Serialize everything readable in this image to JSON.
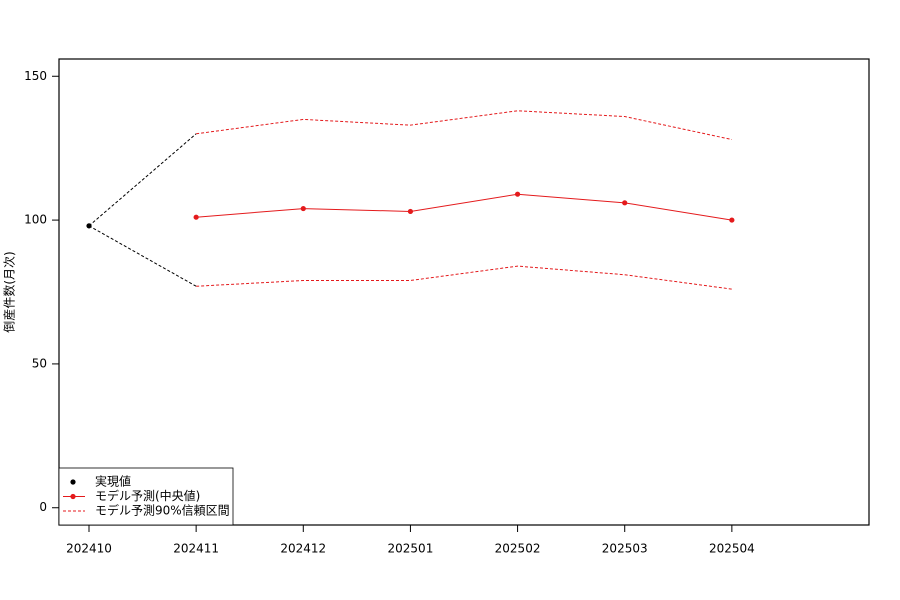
{
  "chart_data": {
    "type": "line",
    "y_label": "倒産件数(月次)",
    "categories": [
      "202410",
      "202411",
      "202412",
      "202501",
      "202502",
      "202503",
      "202504"
    ],
    "series": [
      {
        "name": "実現値",
        "color": "#000000",
        "values": [
          98,
          null,
          null,
          null,
          null,
          null,
          null
        ]
      },
      {
        "name": "モデル予測(中央値)",
        "color": "#e41a1c",
        "values": [
          null,
          101,
          104,
          103,
          109,
          106,
          100
        ]
      },
      {
        "name": "モデル予測90%信頼区間",
        "color": "#e41a1c",
        "upper": [
          null,
          130,
          135,
          133,
          138,
          136,
          128
        ],
        "lower": [
          null,
          77,
          79,
          79,
          84,
          81,
          76
        ]
      }
    ],
    "ylim": [
      -6,
      156
    ],
    "yticks": [
      0,
      50,
      100,
      150
    ],
    "legend": "bottomleft"
  }
}
